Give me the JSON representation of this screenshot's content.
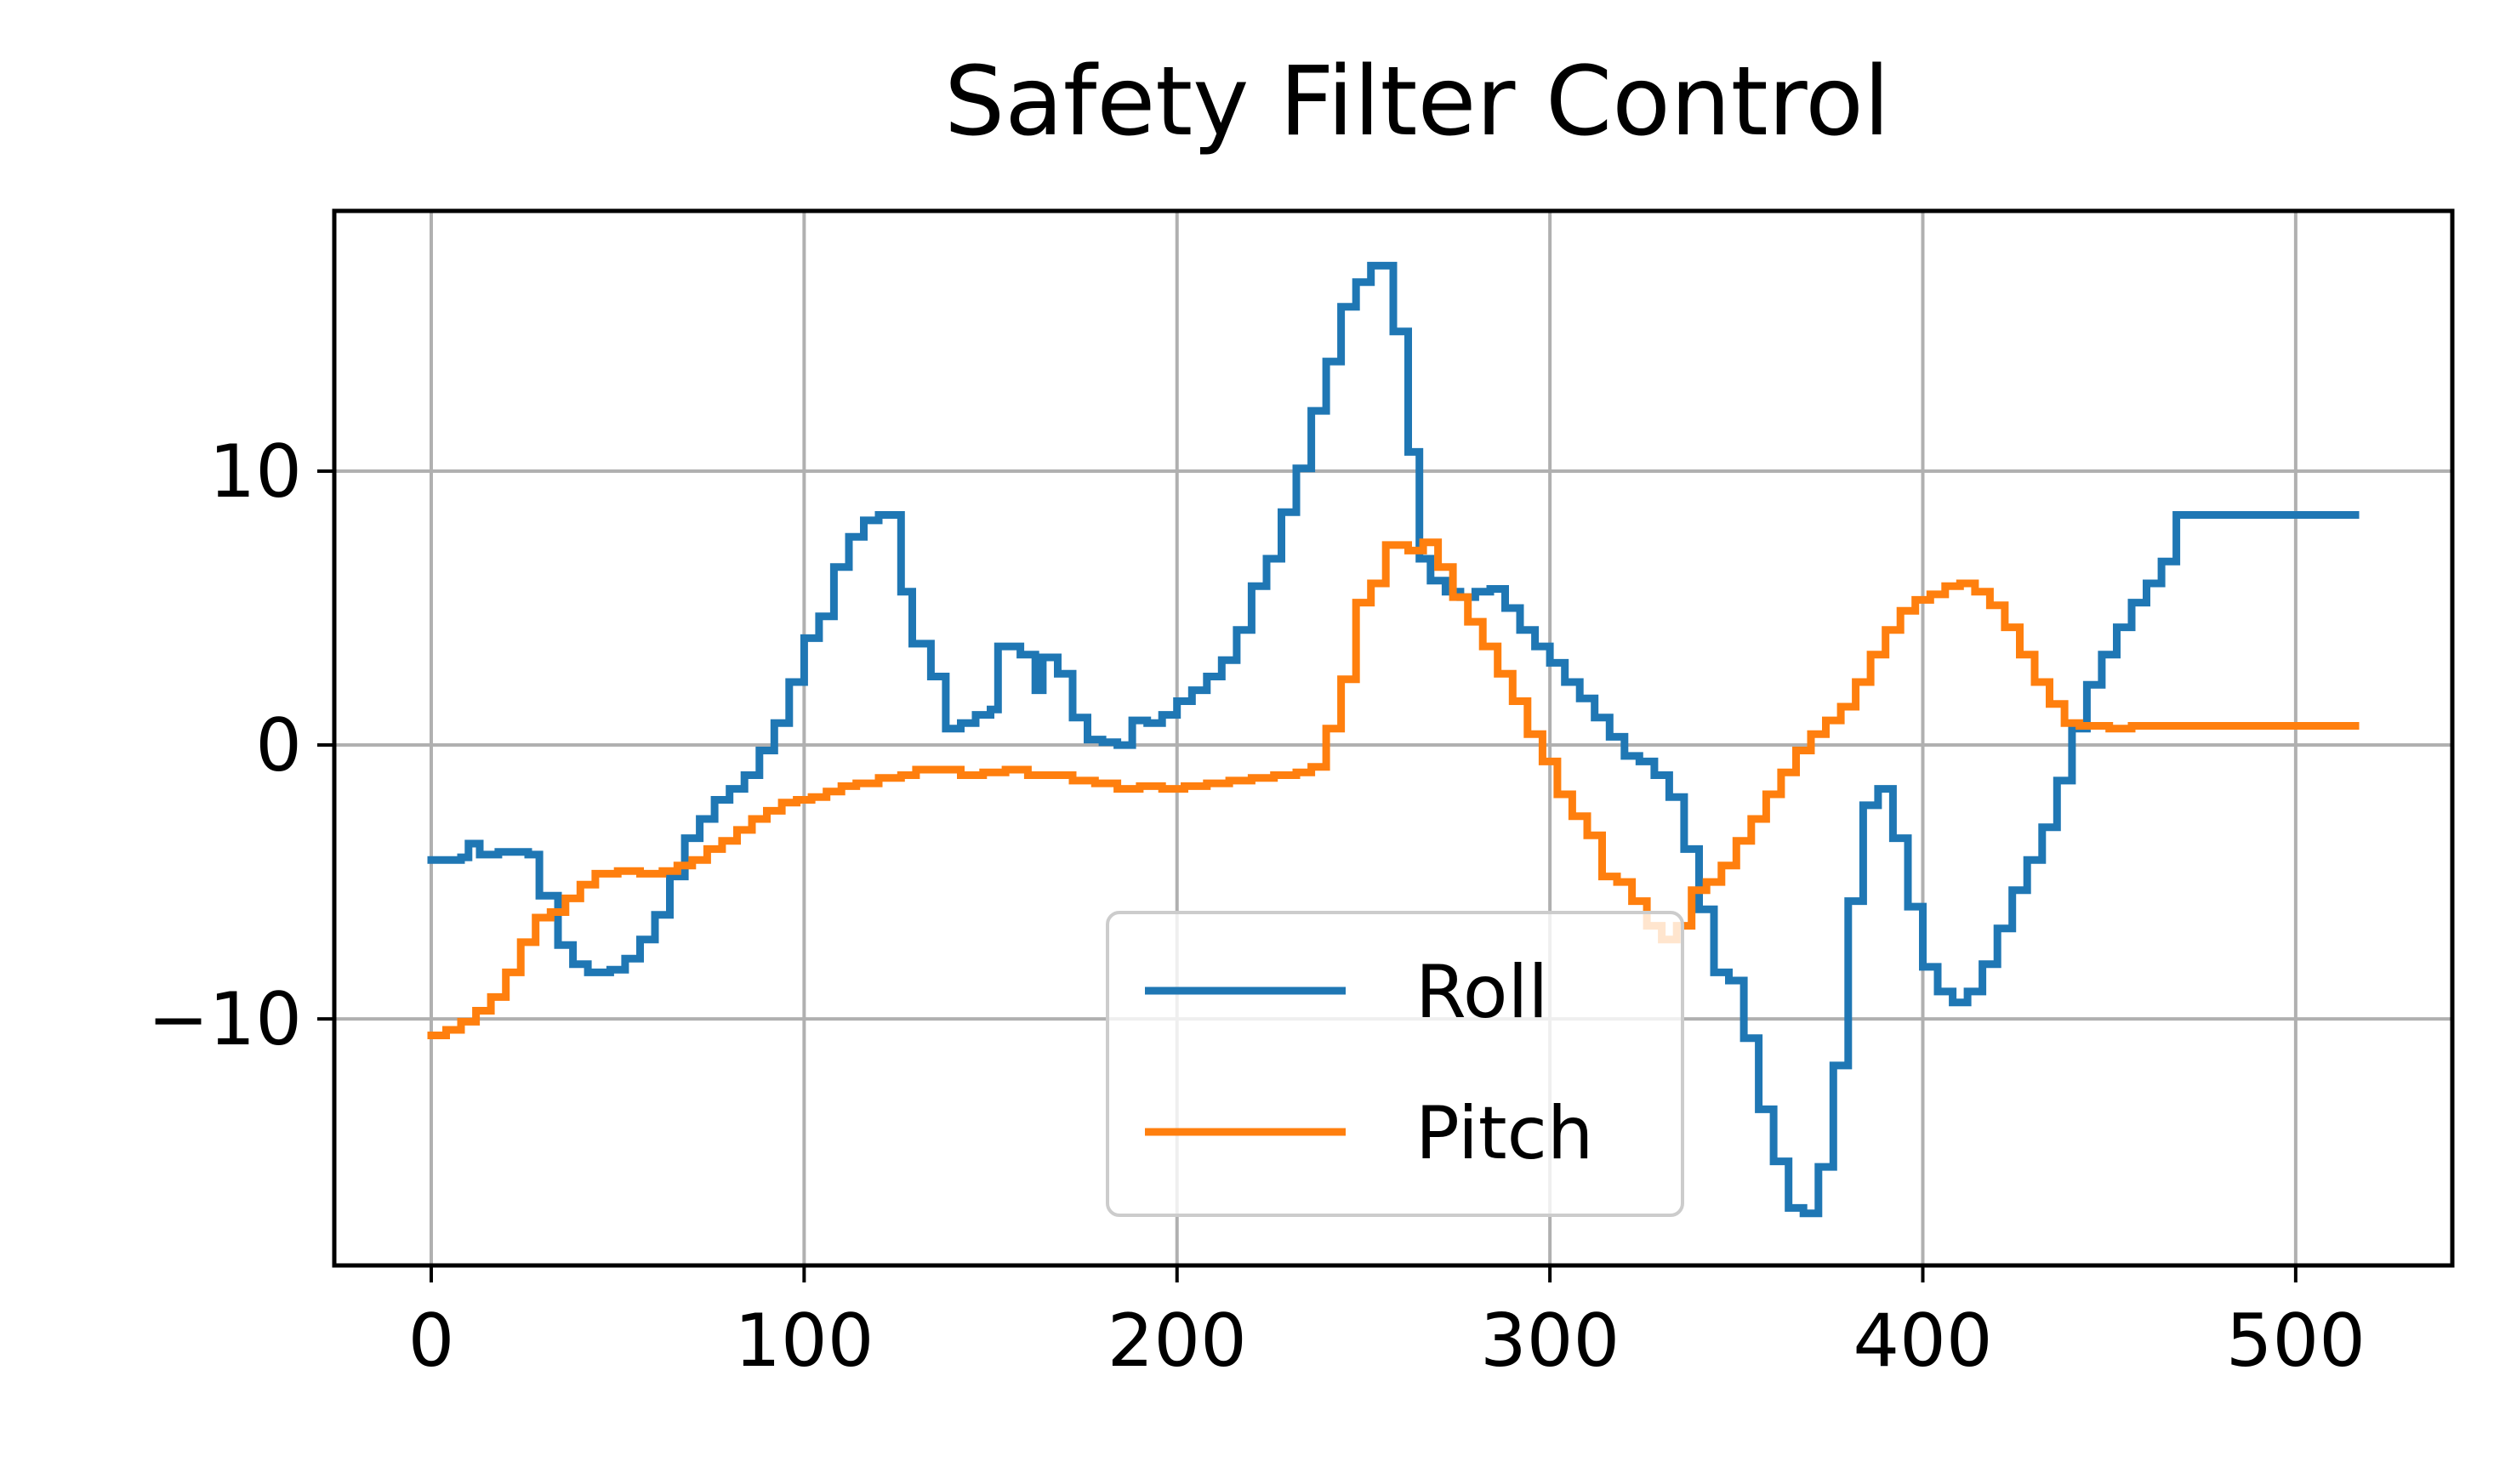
{
  "chart_data": {
    "type": "line",
    "title": "Safety Filter Control",
    "xlabel": "",
    "ylabel": "",
    "xlim": [
      -26,
      542
    ],
    "ylim": [
      -19,
      19.5
    ],
    "xticks": [
      0,
      100,
      200,
      300,
      400,
      500
    ],
    "yticks": [
      -10,
      0,
      10
    ],
    "grid": true,
    "legend_position": "lower center",
    "step": true,
    "series": [
      {
        "name": "Roll",
        "color": "#1f77b4",
        "points": [
          [
            0,
            -4.2
          ],
          [
            8,
            -4.1
          ],
          [
            10,
            -3.6
          ],
          [
            13,
            -4.0
          ],
          [
            18,
            -3.9
          ],
          [
            26,
            -4.0
          ],
          [
            29,
            -5.5
          ],
          [
            34,
            -7.3
          ],
          [
            38,
            -8.0
          ],
          [
            42,
            -8.3
          ],
          [
            48,
            -8.2
          ],
          [
            52,
            -7.8
          ],
          [
            56,
            -7.1
          ],
          [
            60,
            -6.2
          ],
          [
            64,
            -4.8
          ],
          [
            68,
            -3.4
          ],
          [
            72,
            -2.7
          ],
          [
            76,
            -2.0
          ],
          [
            80,
            -1.6
          ],
          [
            84,
            -1.1
          ],
          [
            88,
            -0.2
          ],
          [
            92,
            0.8
          ],
          [
            96,
            2.3
          ],
          [
            100,
            3.9
          ],
          [
            104,
            4.7
          ],
          [
            108,
            6.5
          ],
          [
            112,
            7.6
          ],
          [
            116,
            8.2
          ],
          [
            120,
            8.4
          ],
          [
            126,
            5.6
          ],
          [
            129,
            3.7
          ],
          [
            134,
            2.5
          ],
          [
            138,
            0.6
          ],
          [
            142,
            0.8
          ],
          [
            146,
            1.1
          ],
          [
            150,
            1.3
          ],
          [
            152,
            3.6
          ],
          [
            158,
            3.3
          ],
          [
            162,
            2.0
          ],
          [
            164,
            3.2
          ],
          [
            168,
            2.6
          ],
          [
            172,
            1.0
          ],
          [
            176,
            0.2
          ],
          [
            180,
            0.1
          ],
          [
            184,
            0.0
          ],
          [
            188,
            0.9
          ],
          [
            192,
            0.8
          ],
          [
            196,
            1.1
          ],
          [
            200,
            1.6
          ],
          [
            204,
            2.0
          ],
          [
            208,
            2.5
          ],
          [
            212,
            3.1
          ],
          [
            216,
            4.2
          ],
          [
            220,
            5.8
          ],
          [
            224,
            6.8
          ],
          [
            228,
            8.5
          ],
          [
            232,
            10.1
          ],
          [
            236,
            12.2
          ],
          [
            240,
            14.0
          ],
          [
            244,
            16.0
          ],
          [
            248,
            16.9
          ],
          [
            252,
            17.5
          ],
          [
            258,
            15.1
          ],
          [
            262,
            10.7
          ],
          [
            265,
            6.8
          ],
          [
            268,
            6.0
          ],
          [
            272,
            5.6
          ],
          [
            276,
            5.4
          ],
          [
            280,
            5.6
          ],
          [
            284,
            5.7
          ],
          [
            288,
            5.0
          ],
          [
            292,
            4.2
          ],
          [
            296,
            3.6
          ],
          [
            300,
            3.0
          ],
          [
            304,
            2.3
          ],
          [
            308,
            1.7
          ],
          [
            312,
            1.0
          ],
          [
            316,
            0.3
          ],
          [
            320,
            -0.4
          ],
          [
            324,
            -0.6
          ],
          [
            328,
            -1.1
          ],
          [
            332,
            -1.9
          ],
          [
            336,
            -3.8
          ],
          [
            340,
            -6.0
          ],
          [
            344,
            -8.3
          ],
          [
            348,
            -8.6
          ],
          [
            352,
            -10.7
          ],
          [
            356,
            -13.3
          ],
          [
            360,
            -15.2
          ],
          [
            364,
            -16.9
          ],
          [
            368,
            -17.1
          ],
          [
            372,
            -15.4
          ],
          [
            376,
            -11.7
          ],
          [
            380,
            -5.7
          ],
          [
            384,
            -2.2
          ],
          [
            388,
            -1.6
          ],
          [
            392,
            -3.4
          ],
          [
            396,
            -5.9
          ],
          [
            400,
            -8.1
          ],
          [
            404,
            -9.0
          ],
          [
            408,
            -9.4
          ],
          [
            412,
            -9.0
          ],
          [
            416,
            -8.0
          ],
          [
            420,
            -6.7
          ],
          [
            424,
            -5.3
          ],
          [
            428,
            -4.2
          ],
          [
            432,
            -3.0
          ],
          [
            436,
            -1.3
          ],
          [
            440,
            0.6
          ],
          [
            444,
            2.2
          ],
          [
            448,
            3.3
          ],
          [
            452,
            4.3
          ],
          [
            456,
            5.2
          ],
          [
            460,
            5.9
          ],
          [
            464,
            6.7
          ],
          [
            468,
            8.4
          ],
          [
            516,
            8.4
          ]
        ]
      },
      {
        "name": "Pitch",
        "color": "#ff7f0e",
        "points": [
          [
            0,
            -10.6
          ],
          [
            4,
            -10.4
          ],
          [
            8,
            -10.1
          ],
          [
            12,
            -9.7
          ],
          [
            16,
            -9.2
          ],
          [
            20,
            -8.3
          ],
          [
            24,
            -7.2
          ],
          [
            28,
            -6.3
          ],
          [
            32,
            -6.1
          ],
          [
            36,
            -5.6
          ],
          [
            40,
            -5.1
          ],
          [
            44,
            -4.7
          ],
          [
            50,
            -4.6
          ],
          [
            56,
            -4.7
          ],
          [
            62,
            -4.6
          ],
          [
            66,
            -4.4
          ],
          [
            70,
            -4.2
          ],
          [
            74,
            -3.8
          ],
          [
            78,
            -3.5
          ],
          [
            82,
            -3.1
          ],
          [
            86,
            -2.7
          ],
          [
            90,
            -2.4
          ],
          [
            94,
            -2.1
          ],
          [
            98,
            -2.0
          ],
          [
            102,
            -1.9
          ],
          [
            106,
            -1.7
          ],
          [
            110,
            -1.5
          ],
          [
            114,
            -1.4
          ],
          [
            120,
            -1.2
          ],
          [
            126,
            -1.1
          ],
          [
            130,
            -0.9
          ],
          [
            136,
            -0.9
          ],
          [
            142,
            -1.1
          ],
          [
            148,
            -1.0
          ],
          [
            154,
            -0.9
          ],
          [
            160,
            -1.1
          ],
          [
            166,
            -1.1
          ],
          [
            172,
            -1.3
          ],
          [
            178,
            -1.4
          ],
          [
            184,
            -1.6
          ],
          [
            190,
            -1.5
          ],
          [
            196,
            -1.6
          ],
          [
            202,
            -1.5
          ],
          [
            208,
            -1.4
          ],
          [
            214,
            -1.3
          ],
          [
            220,
            -1.2
          ],
          [
            226,
            -1.1
          ],
          [
            232,
            -1.0
          ],
          [
            236,
            -0.8
          ],
          [
            240,
            0.6
          ],
          [
            244,
            2.4
          ],
          [
            248,
            5.2
          ],
          [
            252,
            5.9
          ],
          [
            256,
            7.3
          ],
          [
            262,
            7.1
          ],
          [
            266,
            7.4
          ],
          [
            270,
            6.5
          ],
          [
            274,
            5.4
          ],
          [
            278,
            4.5
          ],
          [
            282,
            3.6
          ],
          [
            286,
            2.6
          ],
          [
            290,
            1.6
          ],
          [
            294,
            0.4
          ],
          [
            298,
            -0.6
          ],
          [
            302,
            -1.8
          ],
          [
            306,
            -2.6
          ],
          [
            310,
            -3.3
          ],
          [
            314,
            -4.8
          ],
          [
            318,
            -5.0
          ],
          [
            322,
            -5.7
          ],
          [
            326,
            -6.6
          ],
          [
            330,
            -7.1
          ],
          [
            334,
            -6.6
          ],
          [
            338,
            -5.3
          ],
          [
            342,
            -5.0
          ],
          [
            346,
            -4.4
          ],
          [
            350,
            -3.5
          ],
          [
            354,
            -2.7
          ],
          [
            358,
            -1.8
          ],
          [
            362,
            -1.0
          ],
          [
            366,
            -0.2
          ],
          [
            370,
            0.4
          ],
          [
            374,
            0.9
          ],
          [
            378,
            1.4
          ],
          [
            382,
            2.3
          ],
          [
            386,
            3.3
          ],
          [
            390,
            4.2
          ],
          [
            394,
            4.9
          ],
          [
            398,
            5.3
          ],
          [
            402,
            5.5
          ],
          [
            406,
            5.8
          ],
          [
            410,
            5.9
          ],
          [
            414,
            5.6
          ],
          [
            418,
            5.1
          ],
          [
            422,
            4.3
          ],
          [
            426,
            3.3
          ],
          [
            430,
            2.3
          ],
          [
            434,
            1.5
          ],
          [
            438,
            0.8
          ],
          [
            442,
            0.7
          ],
          [
            450,
            0.6
          ],
          [
            456,
            0.7
          ],
          [
            516,
            0.7
          ]
        ]
      }
    ]
  }
}
